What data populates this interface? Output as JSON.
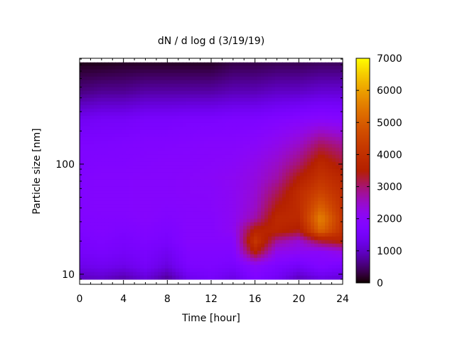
{
  "chart_data": {
    "type": "heatmap",
    "title": "dN / d log d (3/19/19)",
    "xlabel": "Time [hour]",
    "ylabel": "Particle size [nm]",
    "xlim": [
      0,
      24
    ],
    "ylim": [
      8.1,
      915
    ],
    "yscale": "log",
    "data_ylim": [
      9,
      840
    ],
    "xticks": [
      0,
      4,
      8,
      12,
      16,
      20,
      24
    ],
    "xtick_labels": [
      "0",
      "4",
      "8",
      "12",
      "16",
      "20",
      "24"
    ],
    "yticks": [
      10,
      100
    ],
    "ytick_labels": [
      "10",
      "100"
    ],
    "colorbar": {
      "range": [
        0,
        7000
      ],
      "ticks": [
        0,
        1000,
        2000,
        3000,
        4000,
        5000,
        6000,
        7000
      ],
      "tick_labels": [
        "0",
        "1000",
        "2000",
        "3000",
        "4000",
        "5000",
        "6000",
        "7000"
      ],
      "palette": "black-purple-red-orange-yellow"
    },
    "x": [
      0,
      2,
      4,
      6,
      8,
      10,
      12,
      14,
      16,
      18,
      20,
      22,
      24
    ],
    "y": [
      9,
      12,
      16,
      20,
      25,
      32,
      40,
      55,
      75,
      100,
      150,
      250,
      450,
      840
    ],
    "z": [
      [
        900,
        1000,
        800,
        1100,
        700,
        1300,
        1500,
        1200,
        1700,
        1400,
        900,
        1200,
        1100
      ],
      [
        1300,
        1400,
        1300,
        1500,
        1200,
        1700,
        1700,
        1600,
        2000,
        1700,
        1500,
        1800,
        1600
      ],
      [
        1500,
        1600,
        1500,
        1600,
        1400,
        1800,
        1800,
        1800,
        3600,
        2200,
        2100,
        2000,
        2300
      ],
      [
        1600,
        1700,
        1600,
        1700,
        1600,
        1900,
        1900,
        1900,
        4200,
        2800,
        2400,
        3300,
        3600
      ],
      [
        1700,
        1800,
        1700,
        1800,
        1700,
        1900,
        1900,
        2100,
        3600,
        3700,
        3400,
        5200,
        4000
      ],
      [
        1800,
        1800,
        1800,
        1900,
        1800,
        1900,
        1900,
        2100,
        2700,
        3800,
        3800,
        5600,
        4100
      ],
      [
        1800,
        1850,
        1850,
        1900,
        1850,
        1900,
        1950,
        2100,
        2500,
        3500,
        3900,
        5100,
        4000
      ],
      [
        1800,
        1850,
        1850,
        1900,
        1900,
        1950,
        1950,
        2100,
        2400,
        3100,
        3900,
        4500,
        3900
      ],
      [
        1800,
        1850,
        1850,
        1900,
        1900,
        1950,
        2000,
        2100,
        2300,
        2700,
        3500,
        4100,
        3700
      ],
      [
        1750,
        1800,
        1800,
        1850,
        1900,
        1900,
        1950,
        2000,
        2200,
        2500,
        3000,
        3800,
        3300
      ],
      [
        1700,
        1700,
        1750,
        1800,
        1800,
        1850,
        1900,
        1900,
        2000,
        2200,
        2500,
        3100,
        2800
      ],
      [
        1400,
        1500,
        1500,
        1600,
        1600,
        1650,
        1650,
        1700,
        1700,
        1800,
        1900,
        2000,
        1900
      ],
      [
        600,
        700,
        700,
        800,
        800,
        800,
        800,
        900,
        900,
        1000,
        1000,
        1100,
        1100
      ],
      [
        100,
        100,
        150,
        150,
        150,
        150,
        150,
        300,
        300,
        350,
        350,
        400,
        400
      ]
    ],
    "grid": false,
    "legend": "colorbar-right"
  }
}
